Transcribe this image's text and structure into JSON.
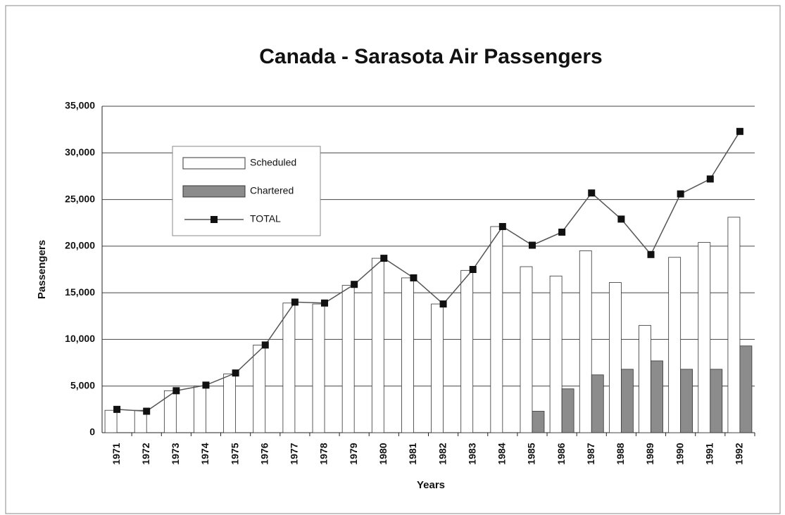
{
  "chart_data": {
    "type": "bar_line",
    "title": "Canada - Sarasota Air Passengers",
    "x_label": "Years",
    "y_label": "Passengers",
    "categories": [
      "1971",
      "1972",
      "1973",
      "1974",
      "1975",
      "1976",
      "1977",
      "1978",
      "1979",
      "1980",
      "1981",
      "1982",
      "1983",
      "1984",
      "1985",
      "1986",
      "1987",
      "1988",
      "1989",
      "1990",
      "1991",
      "1992"
    ],
    "series": [
      {
        "name": "Scheduled",
        "type": "bar",
        "color": "#ffffff",
        "values": [
          2400,
          2400,
          4500,
          5000,
          6300,
          9400,
          13900,
          13800,
          15800,
          18700,
          16600,
          13800,
          17400,
          22100,
          17800,
          16800,
          19500,
          16100,
          11500,
          18800,
          20400,
          23100
        ]
      },
      {
        "name": "Chartered",
        "type": "bar",
        "color": "#8c8c8c",
        "values": [
          0,
          0,
          0,
          0,
          0,
          0,
          0,
          0,
          0,
          0,
          0,
          0,
          0,
          0,
          2300,
          4700,
          6200,
          6800,
          7700,
          6800,
          6800,
          9300
        ]
      },
      {
        "name": "TOTAL",
        "type": "line",
        "color": "#555555",
        "values": [
          2500,
          2300,
          4500,
          5100,
          6400,
          9400,
          14000,
          13900,
          15900,
          18700,
          16600,
          13800,
          17500,
          22100,
          20100,
          21500,
          25700,
          22900,
          19100,
          25600,
          27200,
          32300
        ]
      }
    ],
    "ylim": [
      0,
      35000
    ],
    "yticks": [
      0,
      {
        "value": 5000,
        "label": "5,000"
      },
      {
        "value": 10000,
        "label": "10,000"
      },
      {
        "value": 15000,
        "label": "15,000"
      },
      {
        "value": 20000,
        "label": "20,000"
      },
      {
        "value": 25000,
        "label": "25,000"
      },
      {
        "value": 30000,
        "label": "30,000"
      },
      {
        "value": 35000,
        "label": "35,000"
      }
    ],
    "grid": true
  }
}
